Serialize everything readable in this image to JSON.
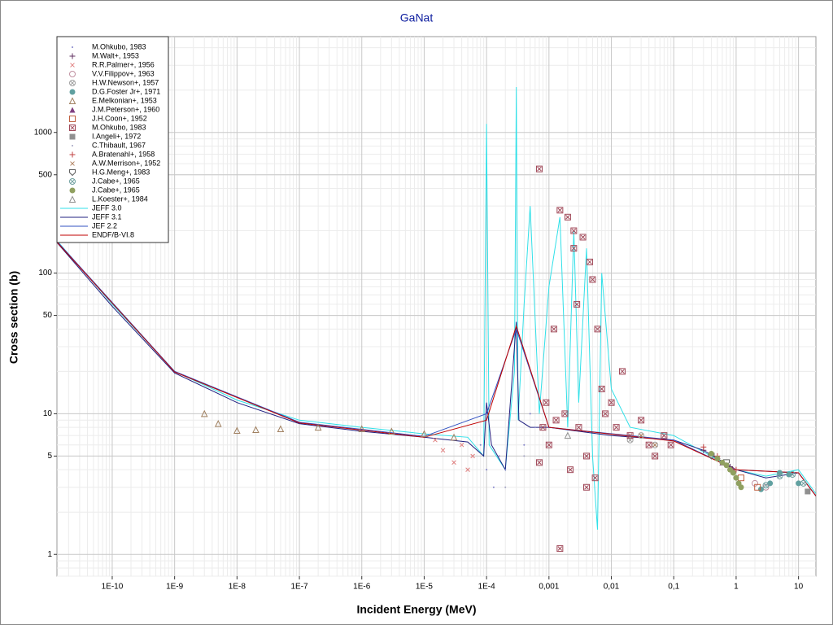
{
  "chart_data": {
    "type": "scatter",
    "title": "GaNat",
    "xlabel": "Incident Energy (MeV)",
    "ylabel": "Cross section (b)",
    "xscale": "log",
    "yscale": "log",
    "grid": true,
    "legend": "upper left",
    "xlim": [
      1.3e-11,
      19
    ],
    "ylim": [
      0.7,
      4800
    ],
    "xticks": [
      {
        "value": 1e-10,
        "label": "1E-10"
      },
      {
        "value": 1e-09,
        "label": "1E-9"
      },
      {
        "value": 1e-08,
        "label": "1E-8"
      },
      {
        "value": 1e-07,
        "label": "1E-7"
      },
      {
        "value": 1e-06,
        "label": "1E-6"
      },
      {
        "value": 1e-05,
        "label": "1E-5"
      },
      {
        "value": 0.0001,
        "label": "1E-4"
      },
      {
        "value": 0.001,
        "label": "0,001"
      },
      {
        "value": 0.01,
        "label": "0,01"
      },
      {
        "value": 0.1,
        "label": "0,1"
      },
      1,
      10
    ],
    "yticks": [
      1,
      5,
      10,
      50,
      100,
      500,
      1000
    ],
    "series": [
      {
        "name": "M.Ohkubo, 1983",
        "marker": "dot",
        "color": "#8080c8",
        "x": [
          8e-05,
          0.0001,
          0.00013,
          0.00016,
          0.0002,
          0.0004,
          0.0005,
          0.0006
        ],
        "values": [
          6,
          4,
          3,
          5,
          4,
          6,
          10,
          8
        ]
      },
      {
        "name": "M.Walt+, 1953",
        "marker": "plus",
        "color": "#603060",
        "x": [
          0.3,
          0.5,
          0.8
        ],
        "values": [
          5.5,
          4.8,
          4.2
        ]
      },
      {
        "name": "R.R.Palmer+, 1956",
        "marker": "x",
        "color": "#e08080",
        "x": [
          1.5e-05,
          2e-05,
          3e-05,
          4e-05,
          5e-05,
          6e-05
        ],
        "values": [
          6.5,
          5.5,
          4.5,
          6,
          4,
          5
        ]
      },
      {
        "name": "V.V.Filippov+, 1963",
        "marker": "circle",
        "color": "#c090a0",
        "x": [
          2,
          3
        ],
        "values": [
          3.2,
          3
        ]
      },
      {
        "name": "H.W.Newson+, 1957",
        "marker": "circle-x",
        "color": "#a0a0a0",
        "x": [
          0.02,
          0.03,
          0.05
        ],
        "values": [
          6.5,
          7,
          6
        ]
      },
      {
        "name": "D.G.Foster Jr+, 1971",
        "marker": "circle-filled",
        "color": "#60a0a0",
        "x": [
          2.5,
          3.5,
          5,
          7,
          10
        ],
        "values": [
          2.9,
          3.2,
          3.8,
          3.7,
          3.2
        ]
      },
      {
        "name": "E.Melkonian+, 1953",
        "marker": "triangle",
        "color": "#a08060",
        "x": [
          3e-09,
          5e-09,
          1e-08,
          2e-08,
          5e-08,
          2e-07,
          1e-06,
          3e-06,
          1e-05,
          3e-05
        ],
        "values": [
          10,
          8.5,
          7.6,
          7.7,
          7.8,
          8,
          7.8,
          7.5,
          7.2,
          6.8
        ]
      },
      {
        "name": "J.M.Peterson+, 1960",
        "marker": "triangle-filled",
        "color": "#804080",
        "x": [
          0.6,
          0.9
        ],
        "values": [
          4.5,
          4
        ]
      },
      {
        "name": "J.H.Coon+, 1952",
        "marker": "square",
        "color": "#c06040",
        "x": [
          1.2,
          2.2
        ],
        "values": [
          3.5,
          3
        ]
      },
      {
        "name": "M.Ohkubo, 1983",
        "marker": "square-x",
        "color": "#a04858",
        "x": [
          0.0007,
          0.0008,
          0.0009,
          0.001,
          0.0012,
          0.0015,
          0.0018,
          0.002,
          0.0022,
          0.0025,
          0.0028,
          0.003,
          0.0035,
          0.004,
          0.0045,
          0.005,
          0.0055,
          0.006,
          0.007,
          0.008,
          0.01,
          0.012,
          0.015,
          0.02,
          0.03,
          0.04,
          0.05,
          0.07,
          0.09,
          0.0007,
          0.0015,
          0.0025,
          0.004,
          0.0013
        ],
        "values": [
          550,
          8,
          12,
          6,
          40,
          280,
          10,
          250,
          4,
          200,
          60,
          8,
          180,
          5,
          120,
          90,
          3.5,
          40,
          15,
          10,
          12,
          8,
          20,
          7,
          9,
          6,
          5,
          7,
          6,
          4.5,
          1.1,
          150,
          3,
          9
        ]
      },
      {
        "name": "I.Angeli+, 1972",
        "marker": "square-filled",
        "color": "#909090",
        "x": [
          14
        ],
        "values": [
          2.8
        ]
      },
      {
        "name": "C.Thibault, 1967",
        "marker": "dot",
        "color": "#a0a0c0",
        "x": [
          0.0002,
          0.0004
        ],
        "values": [
          3,
          5
        ]
      },
      {
        "name": "A.Bratenahl+, 1958",
        "marker": "plus",
        "color": "#c04040",
        "x": [
          0.3,
          0.5,
          1
        ],
        "values": [
          5.8,
          5,
          4
        ]
      },
      {
        "name": "A.W.Merrison+, 1952",
        "marker": "x",
        "color": "#b08060",
        "x": [
          0.03,
          0.05
        ],
        "values": [
          7,
          6
        ]
      },
      {
        "name": "H.G.Meng+, 1983",
        "marker": "shield",
        "color": "#606060",
        "x": [
          0.4,
          0.7
        ],
        "values": [
          5,
          4.5
        ]
      },
      {
        "name": "J.Cabe+, 1965",
        "marker": "circle-x",
        "color": "#70a0a0",
        "x": [
          3,
          5,
          8,
          12
        ],
        "values": [
          3.1,
          3.6,
          3.7,
          3.2
        ]
      },
      {
        "name": "J.Cabe+, 1965",
        "marker": "circle-filled",
        "color": "#90a060",
        "x": [
          0.4,
          0.5,
          0.6,
          0.7,
          0.8,
          0.9,
          1,
          1.1,
          1.2
        ],
        "values": [
          5.2,
          4.8,
          4.5,
          4.3,
          4,
          3.8,
          3.5,
          3.2,
          3
        ]
      },
      {
        "name": "L.Koester+, 1984",
        "marker": "triangle",
        "color": "#909090",
        "x": [
          0.002
        ],
        "values": [
          7
        ]
      },
      {
        "name": "JEFF 3.0",
        "marker": "line",
        "color": "#30e0e8",
        "x": [
          1.3e-11,
          1e-10,
          1e-09,
          1e-08,
          1e-07,
          1e-06,
          1e-05,
          5e-05,
          9e-05,
          0.0001,
          0.00011,
          0.0002,
          0.00028,
          0.0003,
          0.00032,
          0.0004,
          0.0005,
          0.0007,
          0.001,
          0.0015,
          0.002,
          0.0025,
          0.003,
          0.004,
          0.005,
          0.006,
          0.007,
          0.01,
          0.02,
          0.1,
          1,
          3,
          10,
          19
        ],
        "values": [
          170,
          60,
          20,
          12.5,
          9,
          8,
          7.2,
          6.8,
          5,
          1150,
          6,
          4,
          20,
          2100,
          9,
          60,
          300,
          10,
          80,
          250,
          8,
          200,
          12,
          150,
          5,
          1.5,
          100,
          15,
          8,
          7,
          4,
          3.6,
          4,
          2.7
        ]
      },
      {
        "name": "JEFF 3.1",
        "marker": "line",
        "color": "#202080",
        "x": [
          1.3e-11,
          1e-10,
          1e-09,
          1e-08,
          1e-07,
          1e-06,
          1e-05,
          5e-05,
          9e-05,
          0.0001,
          0.00012,
          0.0002,
          0.0003,
          0.00033,
          0.0005,
          0.001,
          0.01,
          0.1,
          0.3,
          1,
          3,
          10,
          19
        ],
        "values": [
          165,
          58,
          19.5,
          12,
          8.5,
          7.5,
          6.8,
          6.3,
          5,
          12,
          6,
          4,
          45,
          9,
          8,
          8,
          7,
          6.5,
          5.5,
          4,
          3.5,
          3.8,
          2.6
        ]
      },
      {
        "name": "JEF 2.2",
        "marker": "line",
        "color": "#3050c0",
        "x": [
          1.3e-11,
          1e-09,
          1e-07,
          1e-05,
          0.0001,
          0.0003,
          0.001,
          0.1,
          1,
          10,
          19
        ],
        "values": [
          168,
          20,
          8.7,
          6.9,
          10,
          40,
          8,
          6.5,
          4,
          3.8,
          2.6
        ]
      },
      {
        "name": "ENDF/B-VI.8",
        "marker": "line",
        "color": "#c00000",
        "x": [
          1.3e-11,
          1e-09,
          1e-07,
          1e-05,
          0.0001,
          0.0003,
          0.001,
          0.1,
          1,
          10,
          19
        ],
        "values": [
          166,
          19.8,
          8.6,
          6.8,
          9,
          42,
          8,
          6.4,
          4,
          3.8,
          2.6
        ]
      }
    ]
  }
}
